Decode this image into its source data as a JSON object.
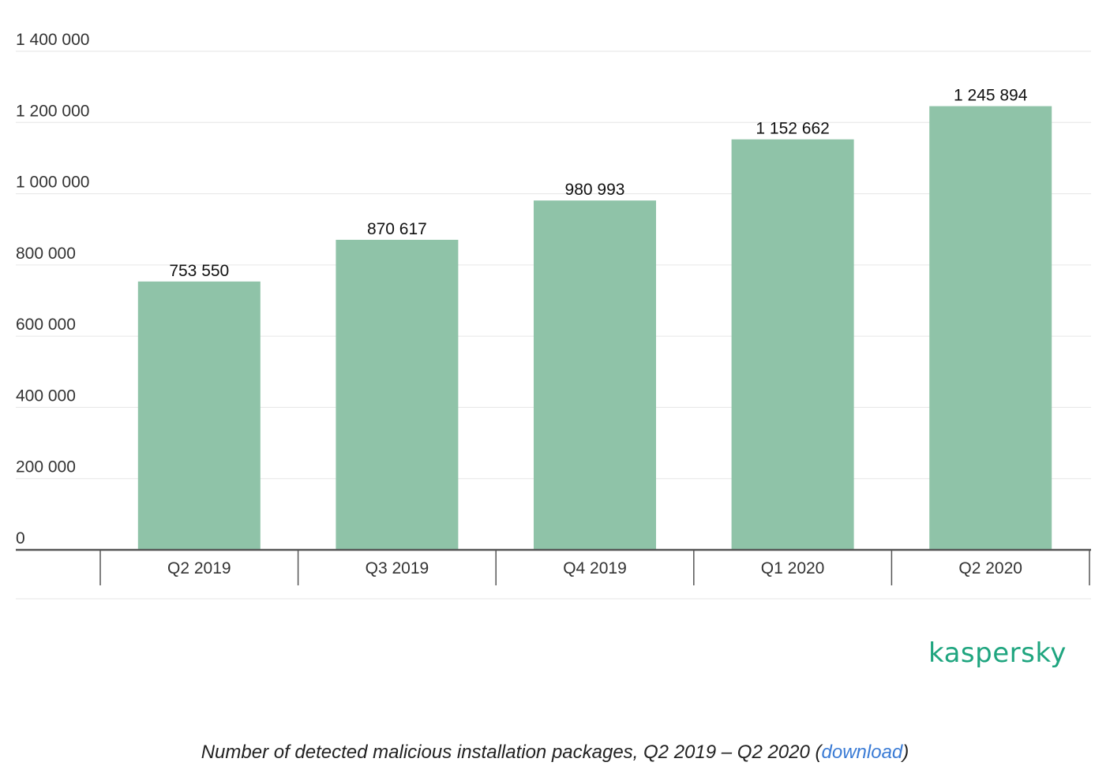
{
  "chart_data": {
    "type": "bar",
    "categories": [
      "Q2 2019",
      "Q3 2019",
      "Q4 2019",
      "Q1 2020",
      "Q2 2020"
    ],
    "values": [
      753550,
      870617,
      980993,
      1152662,
      1245894
    ],
    "data_labels": [
      "753 550",
      "870 617",
      "980 993",
      "1 152 662",
      "1 245 894"
    ],
    "ylim": [
      0,
      1400000
    ],
    "y_ticks": [
      0,
      200000,
      400000,
      600000,
      800000,
      1000000,
      1200000,
      1400000
    ],
    "y_tick_labels": [
      "0",
      "200 000",
      "400 000",
      "600 000",
      "800 000",
      "1 000 000",
      "1 200 000",
      "1 400 000"
    ],
    "grid": true,
    "bar_color": "#8fc3a8"
  },
  "logo": {
    "text": "kaspersky",
    "color": "#1fa57f"
  },
  "caption": {
    "text_before": "Number of detected malicious installation packages, Q2 2019 – Q2 2020 (",
    "link_text": "download",
    "text_after": ")"
  }
}
